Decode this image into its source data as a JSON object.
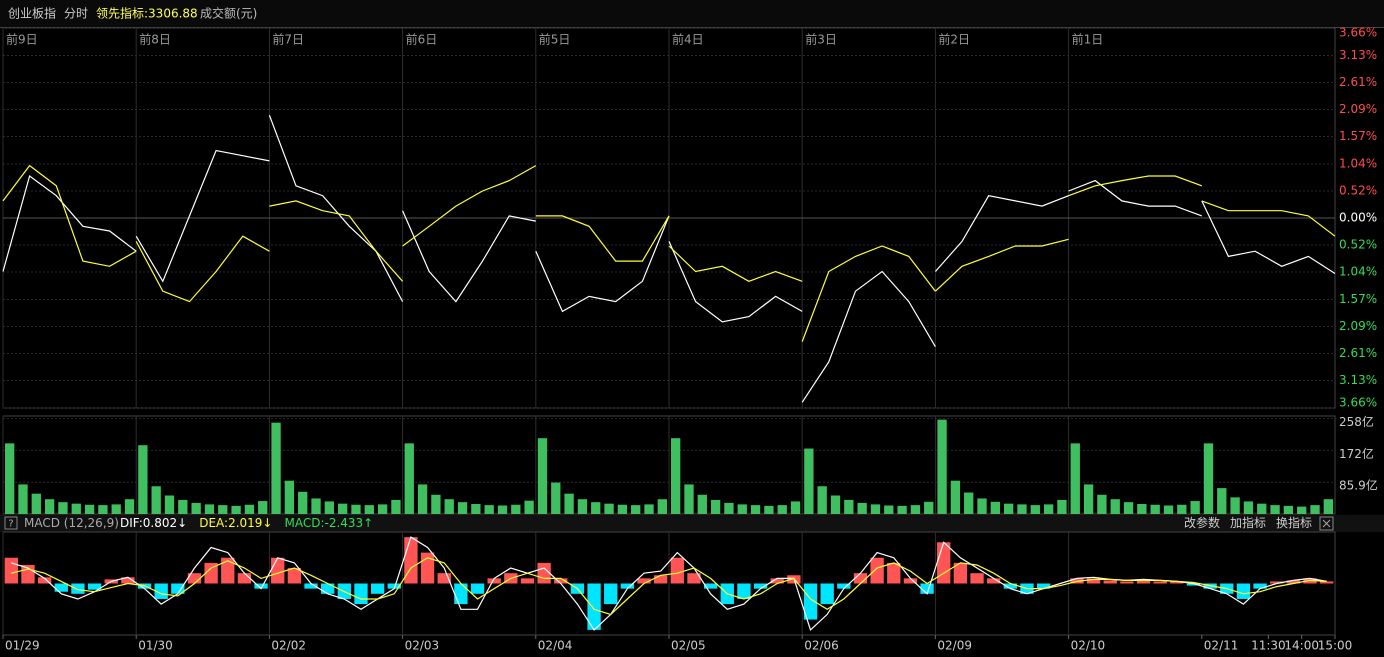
{
  "header": {
    "name": "创业板指",
    "mode": "分时",
    "indicator": "领先指标:3306.88",
    "volume_label": "成交额(元)"
  },
  "toolbar": [
    "改参数",
    "加指标",
    "换指标"
  ],
  "chart_data": [
    {
      "type": "line",
      "x": [
        0,
        0.2,
        0.4,
        0.6,
        0.8,
        1,
        1,
        1,
        1.2,
        1.4,
        1.6,
        1.8,
        2,
        2,
        2,
        2.2,
        2.4,
        2.6,
        2.8,
        3,
        3,
        3,
        3.2,
        3.4,
        3.6,
        3.8,
        4,
        4,
        4,
        4.2,
        4.4,
        4.6,
        4.8,
        5,
        5,
        5,
        5.2,
        5.4,
        5.6,
        5.8,
        6,
        6,
        6,
        6.2,
        6.4,
        6.6,
        6.8,
        7,
        7,
        7,
        7.2,
        7.4,
        7.6,
        7.8,
        8,
        8,
        8,
        8.2,
        8.4,
        8.6,
        8.8,
        9,
        9,
        9,
        9.2,
        9.4,
        9.6,
        9.8,
        10
      ],
      "series": [
        {
          "color": "#ffffff",
          "values": [
            -1.03,
            0.81,
            0.43,
            -0.16,
            -0.25,
            -0.64,
            null,
            -0.35,
            -1.22,
            0.04,
            1.3,
            1.2,
            1.1,
            null,
            1.98,
            0.62,
            0.43,
            -0.16,
            -0.64,
            -1.61,
            null,
            0.14,
            -1.03,
            -1.61,
            -0.83,
            0.04,
            -0.06,
            null,
            -0.64,
            -1.8,
            -1.51,
            -1.61,
            -1.22,
            0.04,
            null,
            -0.45,
            -1.61,
            -2.0,
            -1.9,
            -1.51,
            -1.8,
            null,
            -3.55,
            -2.77,
            -1.41,
            -1.03,
            -1.61,
            -2.48,
            null,
            -1.03,
            -0.45,
            0.43,
            0.33,
            0.23,
            0.43,
            null,
            0.52,
            0.72,
            0.33,
            0.23,
            0.23,
            0.04,
            null,
            0.33,
            -0.74,
            -0.64,
            -0.93,
            -0.74,
            -1.07
          ]
        },
        {
          "color": "#ffff33",
          "values": [
            0.33,
            1.01,
            0.62,
            -0.83,
            -0.93,
            -0.64,
            null,
            -0.45,
            -1.41,
            -1.61,
            -1.03,
            -0.35,
            -0.64,
            null,
            0.23,
            0.33,
            0.14,
            0.04,
            -0.64,
            -1.22,
            null,
            -0.54,
            -0.16,
            0.23,
            0.52,
            0.72,
            1.01,
            null,
            0.04,
            0.04,
            -0.16,
            -0.83,
            -0.83,
            0.04,
            null,
            -0.54,
            -1.03,
            -0.93,
            -1.22,
            -1.03,
            -1.22,
            null,
            -2.38,
            -1.03,
            -0.74,
            -0.54,
            -0.74,
            -1.41,
            null,
            -1.41,
            -0.93,
            -0.74,
            -0.54,
            -0.54,
            -0.41,
            null,
            0.43,
            0.62,
            0.72,
            0.81,
            0.81,
            0.62,
            null,
            0.33,
            0.14,
            0.14,
            0.14,
            0.04,
            -0.35
          ]
        }
      ],
      "xlim": [
        0,
        10
      ],
      "xticks": [
        {
          "value": 0,
          "label": "01/29"
        },
        {
          "value": 1,
          "label": "01/30"
        },
        {
          "value": 2,
          "label": "02/02"
        },
        {
          "value": 3,
          "label": "02/03"
        },
        {
          "value": 4,
          "label": "02/04"
        },
        {
          "value": 5,
          "label": "02/05"
        },
        {
          "value": 6,
          "label": "02/06"
        },
        {
          "value": 7,
          "label": "02/09"
        },
        {
          "value": 8,
          "label": "02/10"
        },
        {
          "value": 9,
          "label": "02/11"
        },
        {
          "value": 9.5,
          "label": "11:30"
        },
        {
          "value": 9.75,
          "label": "14:00"
        },
        {
          "value": 10,
          "label": "15:00"
        }
      ],
      "xticks_top": [
        {
          "value": 0,
          "label": "前9日"
        },
        {
          "value": 1,
          "label": "前8日"
        },
        {
          "value": 2,
          "label": "前7日"
        },
        {
          "value": 3,
          "label": "前6日"
        },
        {
          "value": 4,
          "label": "前5日"
        },
        {
          "value": 5,
          "label": "前4日"
        },
        {
          "value": 6,
          "label": "前3日"
        },
        {
          "value": 7,
          "label": "前2日"
        },
        {
          "value": 8,
          "label": "前1日"
        }
      ],
      "ylim": [
        -3.66,
        3.66
      ],
      "yticks": [
        {
          "value": 3.66,
          "label": "3.66%"
        },
        {
          "value": 3.13,
          "label": "3.13%"
        },
        {
          "value": 2.61,
          "label": "2.61%"
        },
        {
          "value": 2.09,
          "label": "2.09%"
        },
        {
          "value": 1.57,
          "label": "1.57%"
        },
        {
          "value": 1.04,
          "label": "1.04%"
        },
        {
          "value": 0.52,
          "label": "0.52%"
        },
        {
          "value": 0,
          "label": "0.00%"
        },
        {
          "value": -0.52,
          "label": "0.52%"
        },
        {
          "value": -1.04,
          "label": "1.04%"
        },
        {
          "value": -1.57,
          "label": "1.57%"
        },
        {
          "value": -2.09,
          "label": "2.09%"
        },
        {
          "value": -2.61,
          "label": "2.61%"
        },
        {
          "value": -3.13,
          "label": "3.13%"
        },
        {
          "value": -3.66,
          "label": "3.66%"
        }
      ],
      "up_color": "#ff4d4d",
      "down_color": "#33dd55",
      "grid": true
    },
    {
      "type": "bar",
      "color": "#3fbf5f",
      "values": [
        191,
        80,
        55,
        40,
        32,
        28,
        25,
        24,
        26,
        40,
        186,
        75,
        50,
        38,
        30,
        26,
        24,
        22,
        25,
        35,
        247,
        90,
        60,
        42,
        34,
        28,
        25,
        24,
        26,
        38,
        191,
        80,
        52,
        40,
        32,
        27,
        24,
        23,
        25,
        36,
        205,
        85,
        55,
        40,
        32,
        28,
        25,
        24,
        26,
        40,
        205,
        80,
        52,
        38,
        30,
        26,
        24,
        22,
        24,
        34,
        177,
        75,
        50,
        38,
        30,
        26,
        23,
        22,
        24,
        33,
        255,
        90,
        58,
        42,
        33,
        28,
        26,
        24,
        26,
        38,
        191,
        80,
        52,
        40,
        32,
        27,
        25,
        23,
        25,
        35,
        191,
        70,
        45,
        34,
        28,
        24,
        22,
        20,
        24,
        40
      ],
      "ylim": [
        0,
        265
      ],
      "yticks": [
        {
          "value": 258,
          "label": "258亿"
        },
        {
          "value": 172,
          "label": "172亿"
        },
        {
          "value": 85.9,
          "label": "85.9亿"
        }
      ],
      "grid": true
    },
    {
      "type": "macd",
      "title": "MACD (12,26,9)",
      "readouts": [
        "DIF:0.802↓",
        "DEA:2.019↓",
        "MACD:-2.433↑"
      ],
      "readout_colors": [
        "#ffffff",
        "#ffff33",
        "#33dd55"
      ],
      "histogram": [
        25,
        18,
        6,
        -8,
        -10,
        -6,
        4,
        6,
        -5,
        -15,
        -10,
        10,
        20,
        25,
        10,
        -5,
        25,
        15,
        -5,
        -10,
        -15,
        -20,
        -10,
        -5,
        45,
        30,
        10,
        -20,
        -10,
        5,
        10,
        5,
        20,
        5,
        -10,
        -45,
        -20,
        -5,
        5,
        8,
        25,
        10,
        -5,
        -20,
        -15,
        -5,
        5,
        8,
        -35,
        -20,
        -5,
        10,
        25,
        20,
        5,
        -10,
        40,
        20,
        10,
        5,
        -5,
        -10,
        -5,
        0,
        5,
        5,
        3,
        2,
        3,
        2,
        2,
        -2,
        -5,
        -10,
        -15,
        -5,
        2,
        3,
        5,
        2
      ],
      "series": [
        {
          "color": "#ffffff",
          "values": [
            20,
            15,
            5,
            -10,
            -15,
            -8,
            2,
            6,
            -5,
            -20,
            -10,
            15,
            35,
            30,
            10,
            -5,
            25,
            20,
            0,
            -10,
            -15,
            -25,
            -15,
            -5,
            45,
            35,
            15,
            -25,
            -25,
            5,
            15,
            10,
            15,
            0,
            -20,
            -45,
            -30,
            -5,
            10,
            12,
            30,
            15,
            -10,
            -25,
            -20,
            -5,
            5,
            5,
            -45,
            -30,
            -5,
            10,
            30,
            25,
            5,
            -10,
            40,
            25,
            15,
            5,
            -5,
            -10,
            -5,
            0,
            5,
            6,
            4,
            3,
            4,
            3,
            2,
            0,
            -5,
            -10,
            -20,
            -5,
            0,
            3,
            5,
            2
          ]
        },
        {
          "color": "#ffff33",
          "values": [
            10,
            14,
            10,
            2,
            -6,
            -8,
            -4,
            0,
            -2,
            -10,
            -12,
            0,
            15,
            22,
            15,
            5,
            10,
            15,
            8,
            0,
            -8,
            -15,
            -15,
            -10,
            15,
            25,
            20,
            0,
            -15,
            -5,
            5,
            10,
            5,
            5,
            -5,
            -25,
            -30,
            -15,
            0,
            8,
            10,
            15,
            5,
            -10,
            -15,
            -10,
            0,
            5,
            -15,
            -25,
            -15,
            0,
            15,
            20,
            12,
            0,
            10,
            20,
            18,
            10,
            0,
            -5,
            -5,
            -2,
            2,
            4,
            4,
            3,
            3,
            3,
            2,
            1,
            -2,
            -5,
            -10,
            -8,
            -3,
            0,
            3,
            2
          ]
        }
      ],
      "ylim": [
        -50,
        50
      ],
      "up_color": "#ff5555",
      "down_color": "#00e5ff"
    }
  ]
}
